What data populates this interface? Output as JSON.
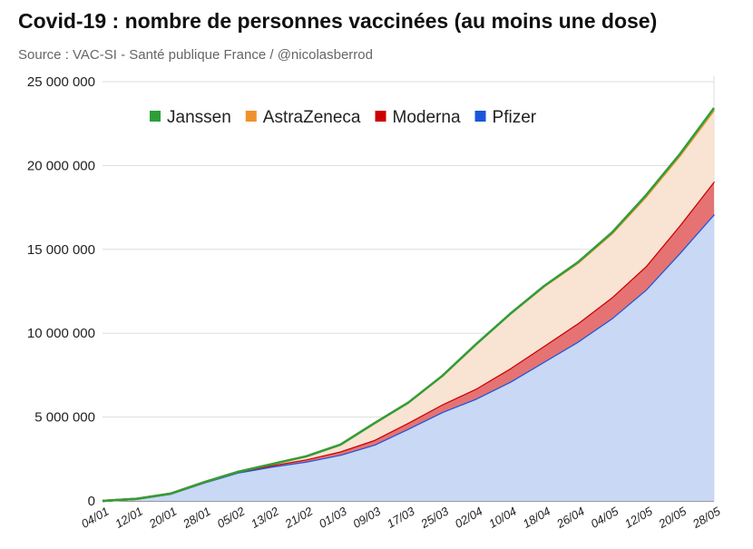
{
  "title": "Covid-19 : nombre de personnes vaccinées (au moins une dose)",
  "source": "Source : VAC-SI - Santé publique France / @nicolasberrod",
  "chart_data": {
    "type": "area",
    "stacked": true,
    "categories": [
      "04/01",
      "12/01",
      "20/01",
      "28/01",
      "05/02",
      "13/02",
      "21/02",
      "01/03",
      "09/03",
      "17/03",
      "25/03",
      "02/04",
      "10/04",
      "18/04",
      "26/04",
      "04/05",
      "12/05",
      "20/05",
      "28/05"
    ],
    "series": [
      {
        "name": "Pfizer",
        "color": "#1a56db",
        "fill": "#c8d8f5",
        "values": [
          0,
          120000,
          420000,
          1100000,
          1700000,
          2050000,
          2350000,
          2750000,
          3350000,
          4300000,
          5300000,
          6100000,
          7100000,
          8300000,
          9500000,
          10900000,
          12600000,
          14800000,
          17100000
        ]
      },
      {
        "name": "Moderna",
        "color": "#cc0000",
        "fill": "#e57373",
        "values": [
          0,
          5000,
          12000,
          20000,
          40000,
          80000,
          130000,
          200000,
          280000,
          360000,
          450000,
          600000,
          800000,
          950000,
          1100000,
          1250000,
          1400000,
          1650000,
          1950000
        ]
      },
      {
        "name": "AstraZeneca",
        "color": "#f0922b",
        "fill": "#f9e3d3",
        "values": [
          0,
          0,
          0,
          0,
          0,
          70000,
          180000,
          400000,
          1000000,
          1200000,
          1700000,
          2650000,
          3250000,
          3550000,
          3600000,
          3800000,
          4150000,
          4150000,
          4250000
        ]
      },
      {
        "name": "Janssen",
        "color": "#2e9e3a",
        "fill": "#8ccf91",
        "values": [
          0,
          0,
          0,
          0,
          0,
          0,
          0,
          0,
          0,
          0,
          0,
          0,
          0,
          20000,
          40000,
          60000,
          80000,
          100000,
          130000
        ]
      }
    ],
    "legend_order": [
      "Janssen",
      "AstraZeneca",
      "Moderna",
      "Pfizer"
    ],
    "y_ticks": [
      "0",
      "5 000 000",
      "10 000 000",
      "15 000 000",
      "20 000 000",
      "25 000 000"
    ],
    "ylim": [
      0,
      25000000
    ],
    "grid": true,
    "legend_position": "top-left"
  }
}
